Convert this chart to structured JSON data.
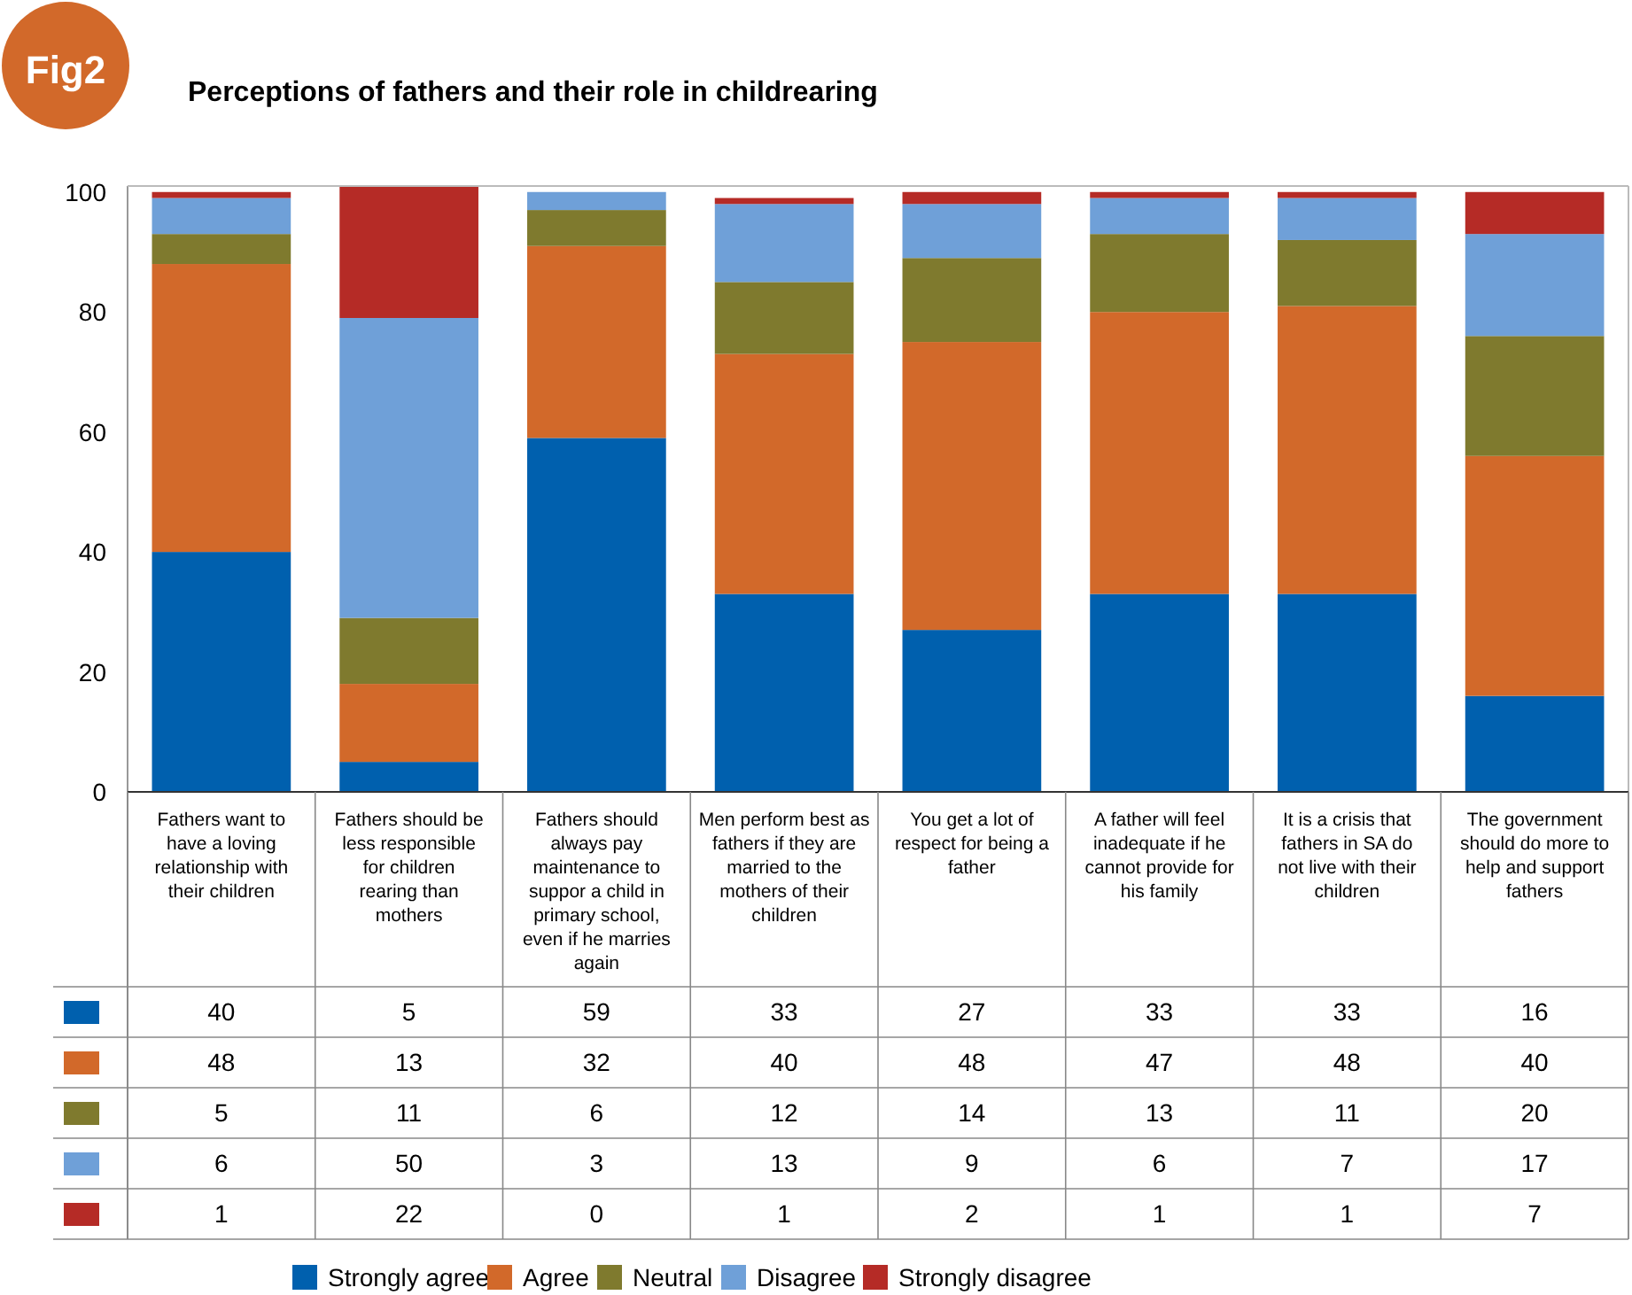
{
  "chart_data": {
    "type": "bar",
    "stacked": true,
    "title": "Perceptions of fathers and their role in childrearing",
    "annotations": [
      "Fig2"
    ],
    "categories": [
      "Fathers want to have a loving relationship with their children",
      "Fathers should be less responsible for children rearing than mothers",
      "Fathers should always pay maintenance to suppor a child in primary school, even if he marries again",
      "Men perform best as fathers if they are married to the mothers of their children",
      "You get a lot of respect for being a father",
      "A father will feel inadequate if he cannot provide for his family",
      "It is a crisis that fathers in SA do not live with their children",
      "The government should do more to help and support fathers"
    ],
    "series": [
      {
        "name": "Strongly agree",
        "color": "#0060ae",
        "values": [
          40,
          5,
          59,
          33,
          27,
          33,
          33,
          16
        ]
      },
      {
        "name": "Agree",
        "color": "#d2692a",
        "values": [
          48,
          13,
          32,
          40,
          48,
          47,
          48,
          40
        ]
      },
      {
        "name": "Neutral",
        "color": "#7f7a2e",
        "values": [
          5,
          11,
          6,
          12,
          14,
          13,
          11,
          20
        ]
      },
      {
        "name": "Disagree",
        "color": "#6fa0d8",
        "values": [
          6,
          50,
          3,
          13,
          9,
          6,
          7,
          17
        ]
      },
      {
        "name": "Strongly disagree",
        "color": "#b52b26",
        "values": [
          1,
          22,
          0,
          1,
          2,
          1,
          1,
          7
        ]
      }
    ],
    "ylim": [
      0,
      101
    ],
    "yticks": [
      0,
      20,
      40,
      60,
      80,
      100
    ],
    "data_labels": true,
    "legend": "bottom"
  }
}
